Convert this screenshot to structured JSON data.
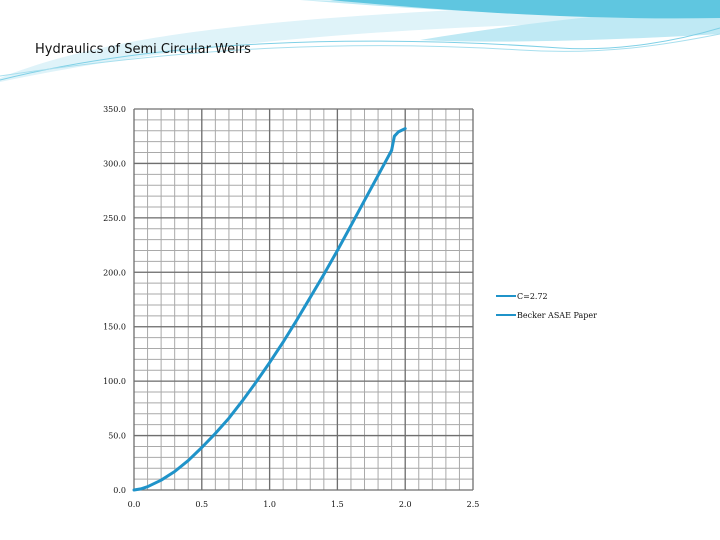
{
  "slide": {
    "title": "Hydraulics of Semi Circular Weirs"
  },
  "colors": {
    "series": "#1f93c9",
    "grid_major": "#6f6f6f",
    "grid_minor": "#a9a9a9",
    "banner_light": "#bfe9f4",
    "banner_mid": "#5fc6e0"
  },
  "chart_data": {
    "type": "line",
    "title": "",
    "xlabel": "",
    "ylabel": "",
    "xlim": [
      0,
      2.5
    ],
    "ylim": [
      0,
      350
    ],
    "x_ticks": [
      "0.0",
      "0.5",
      "1.0",
      "1.5",
      "2.0",
      "2.5"
    ],
    "y_ticks": [
      "0.0",
      "50.0",
      "100.0",
      "150.0",
      "200.0",
      "250.0",
      "300.0",
      "350.0"
    ],
    "grid": true,
    "legend_position": "right",
    "series": [
      {
        "name": "C=2.72",
        "x": [
          0.0,
          0.05,
          0.1,
          0.2,
          0.3,
          0.4,
          0.5,
          0.6,
          0.7,
          0.8,
          0.9,
          1.0,
          1.1,
          1.2,
          1.3,
          1.4,
          1.5,
          1.6,
          1.7,
          1.8,
          1.9
        ],
        "y": [
          0.0,
          1.0,
          3.0,
          9.0,
          17.0,
          27.0,
          39.0,
          52.0,
          66.0,
          82.0,
          99.0,
          117.0,
          136.0,
          156.0,
          177.0,
          198.0,
          220.0,
          243.0,
          266.0,
          289.0,
          312.0
        ]
      },
      {
        "name": "Becker ASAE Paper",
        "x": [
          1.9,
          1.92,
          1.95,
          2.0
        ],
        "y": [
          312.0,
          325.0,
          329.0,
          332.0
        ]
      }
    ]
  }
}
